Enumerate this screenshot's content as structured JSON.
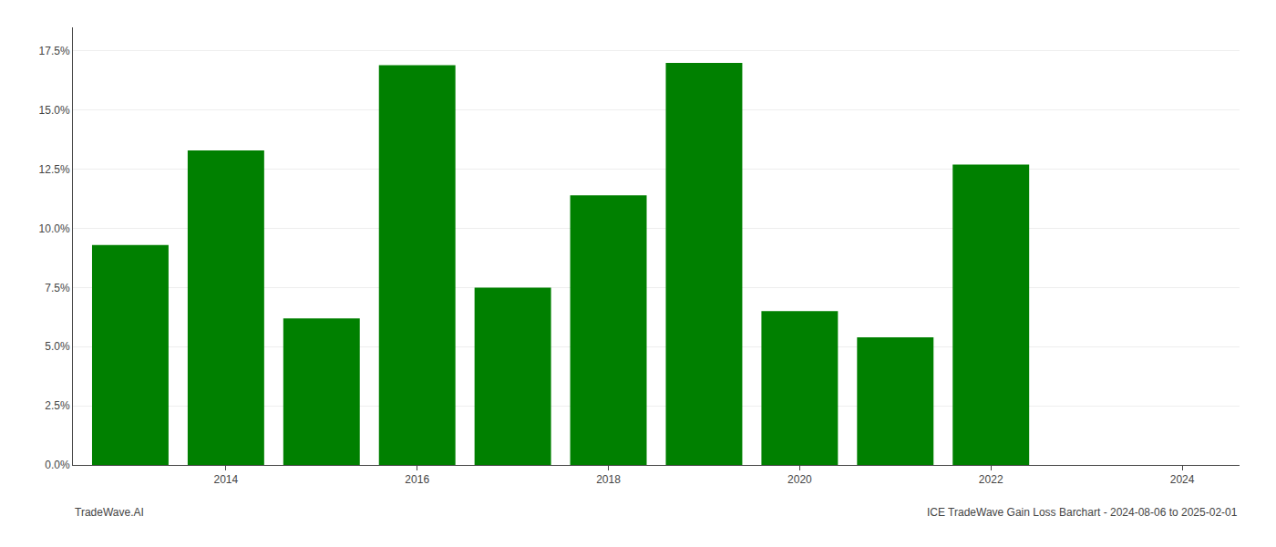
{
  "chart_data": {
    "type": "bar",
    "x": [
      2013,
      2014,
      2015,
      2016,
      2017,
      2018,
      2019,
      2020,
      2021,
      2022
    ],
    "values": [
      0.093,
      0.133,
      0.062,
      0.169,
      0.075,
      0.114,
      0.17,
      0.065,
      0.054,
      0.127
    ],
    "color": "#008000",
    "xlim": [
      2012.4,
      2024.6
    ],
    "xticks": [
      2014,
      2016,
      2018,
      2020,
      2022,
      2024
    ],
    "ylim": [
      0,
      0.185
    ],
    "yticks": [
      {
        "value": 0.0,
        "label": "0.0%"
      },
      {
        "value": 0.025,
        "label": "2.5%"
      },
      {
        "value": 0.05,
        "label": "5.0%"
      },
      {
        "value": 0.075,
        "label": "7.5%"
      },
      {
        "value": 0.1,
        "label": "10.0%"
      },
      {
        "value": 0.125,
        "label": "12.5%"
      },
      {
        "value": 0.15,
        "label": "15.0%"
      },
      {
        "value": 0.175,
        "label": "17.5%"
      }
    ],
    "grid": true,
    "annotations": [
      "TradeWave.AI",
      "ICE TradeWave Gain Loss Barchart - 2024-08-06 to 2025-02-01"
    ]
  }
}
